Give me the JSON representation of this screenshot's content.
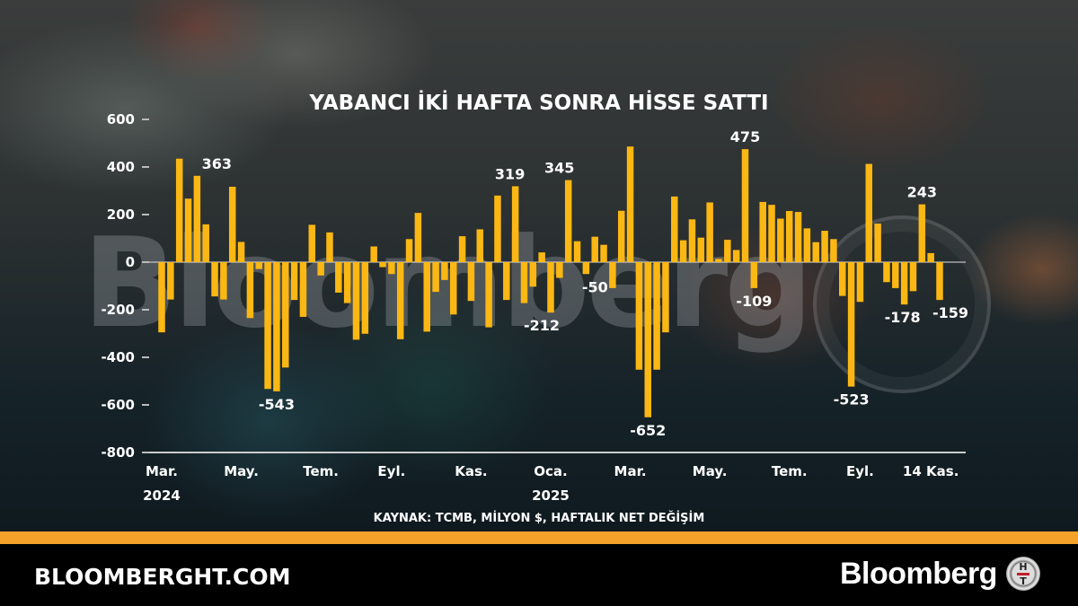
{
  "header": {
    "title": "YABANCI İKİ HAFTA SONRA HİSSE SATTI"
  },
  "watermark": {
    "text": "Bloomberg"
  },
  "source": "KAYNAK: TCMB, MİLYON $, HAFTALIK NET DEĞİŞİM",
  "footer": {
    "site": "BLOOMBERGHT.COM",
    "brand": "Bloomberg",
    "logo_top": "H",
    "logo_bottom": "T"
  },
  "colors": {
    "bar": "#fbb713",
    "stripe": "#f5a22a",
    "footer_bg": "#000000",
    "text": "#ffffff"
  },
  "chart_data": {
    "type": "bar",
    "title": "YABANCI İKİ HAFTA SONRA HİSSE SATTI",
    "xlabel": "",
    "ylabel": "",
    "unit": "MİLYON $",
    "ylim": [
      -800,
      600
    ],
    "yticks": [
      600,
      400,
      200,
      0,
      -200,
      -400,
      -600,
      -800
    ],
    "grid": false,
    "xtick_labels": [
      {
        "index": 0,
        "line1": "Mar.",
        "line2": "2024"
      },
      {
        "index": 9,
        "line1": "May.",
        "line2": ""
      },
      {
        "index": 18,
        "line1": "Tem.",
        "line2": ""
      },
      {
        "index": 26,
        "line1": "Eyl.",
        "line2": ""
      },
      {
        "index": 35,
        "line1": "Kas.",
        "line2": ""
      },
      {
        "index": 44,
        "line1": "Oca.",
        "line2": "2025"
      },
      {
        "index": 53,
        "line1": "Mar.",
        "line2": ""
      },
      {
        "index": 62,
        "line1": "May.",
        "line2": ""
      },
      {
        "index": 71,
        "line1": "Tem.",
        "line2": ""
      },
      {
        "index": 79,
        "line1": "Eyl.",
        "line2": ""
      },
      {
        "index": 87,
        "line1": "14 Kas.",
        "line2": ""
      }
    ],
    "values": [
      -295,
      -157,
      435,
      267,
      363,
      159,
      -144,
      -157,
      317,
      85,
      -235,
      -29,
      -533,
      -543,
      -443,
      -159,
      -230,
      157,
      -56,
      125,
      -128,
      -172,
      -326,
      -301,
      66,
      -21,
      -50,
      -324,
      97,
      207,
      -292,
      -125,
      -75,
      -220,
      109,
      -163,
      138,
      -274,
      280,
      -159,
      319,
      -172,
      -103,
      41,
      -212,
      -66,
      345,
      88,
      -50,
      107,
      73,
      -109,
      216,
      486,
      -452,
      -652,
      -452,
      -295,
      276,
      92,
      180,
      103,
      251,
      14,
      94,
      51,
      475,
      -109,
      253,
      241,
      183,
      215,
      211,
      142,
      84,
      132,
      97,
      -142,
      -523,
      -167,
      413,
      162,
      -84,
      -109,
      -178,
      -122,
      243,
      38,
      -159
    ],
    "data_labels": [
      {
        "index": 4,
        "text": "363"
      },
      {
        "index": 13,
        "text": "-543"
      },
      {
        "index": 40,
        "text": "319"
      },
      {
        "index": 44,
        "text": "-212"
      },
      {
        "index": 46,
        "text": "345"
      },
      {
        "index": 48,
        "text": "-50"
      },
      {
        "index": 55,
        "text": "-652"
      },
      {
        "index": 66,
        "text": "475"
      },
      {
        "index": 67,
        "text": "-109"
      },
      {
        "index": 78,
        "text": "-523"
      },
      {
        "index": 84,
        "text": "-178"
      },
      {
        "index": 86,
        "text": "243"
      },
      {
        "index": 88,
        "text": "-159"
      }
    ]
  }
}
